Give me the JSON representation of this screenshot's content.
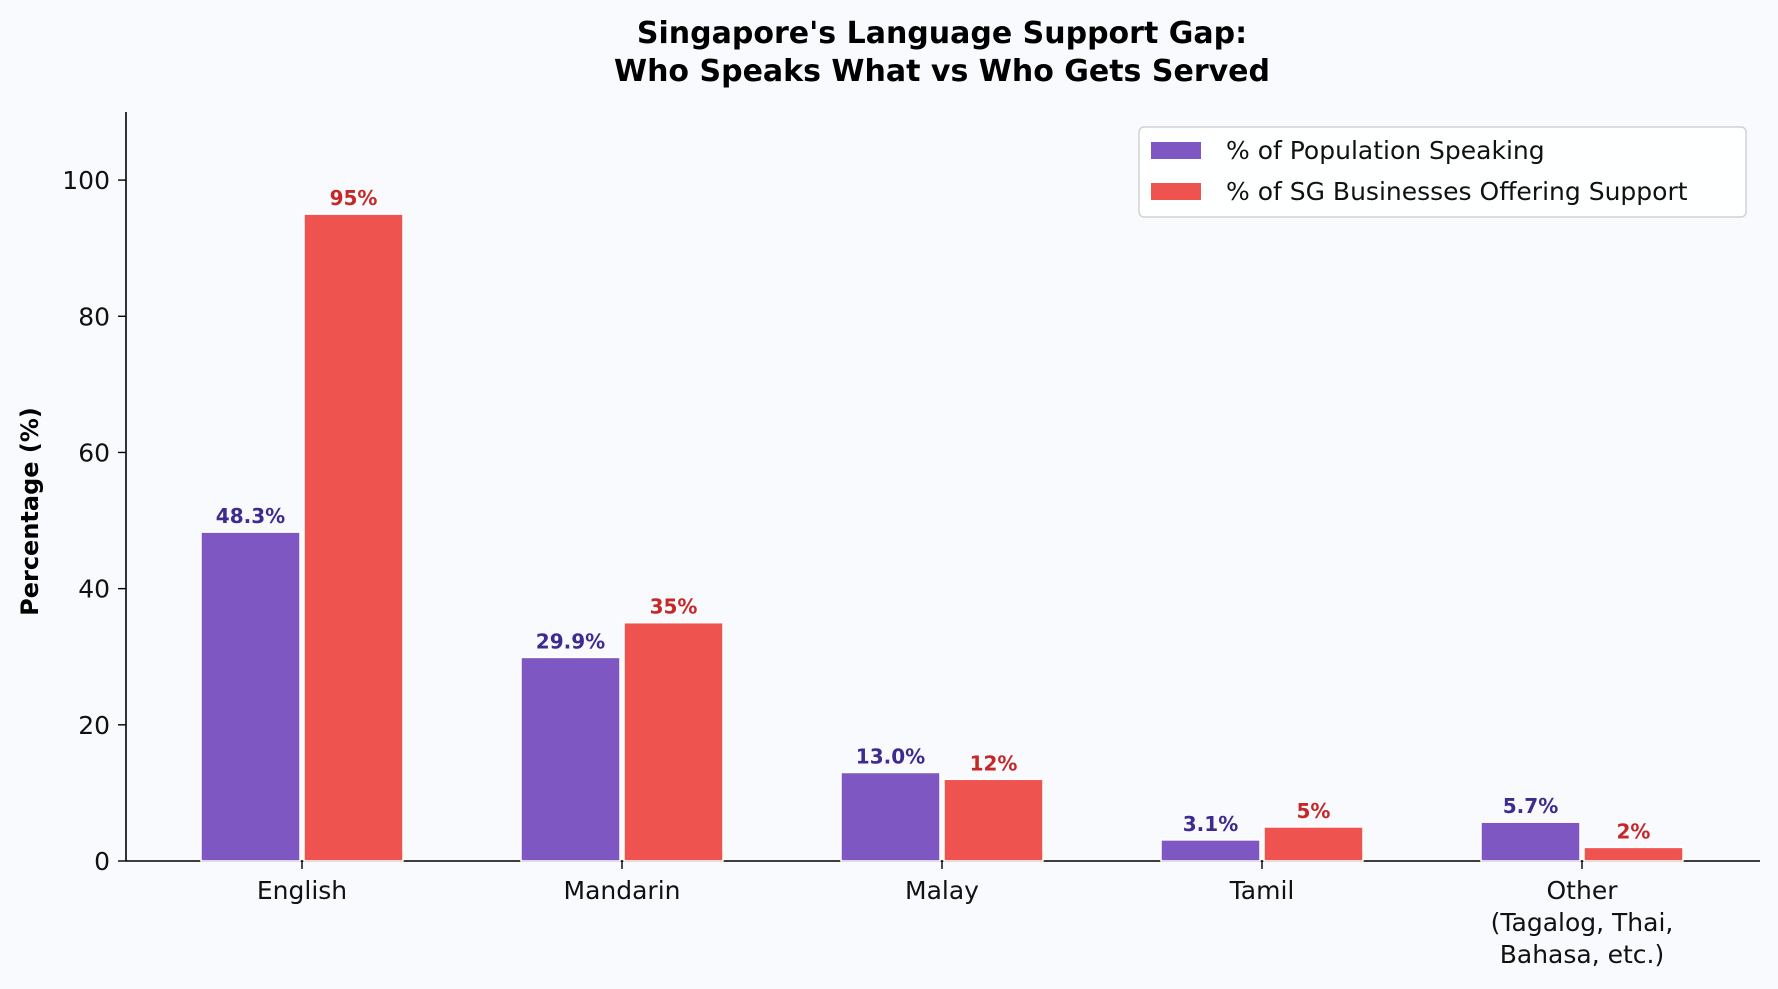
{
  "chart_data": {
    "type": "bar",
    "title": [
      "Singapore's Language Support Gap:",
      "Who Speaks What vs Who Gets Served"
    ],
    "xlabel": "",
    "ylabel": "Percentage (%)",
    "ylim": [
      0,
      110
    ],
    "yticks": [
      0,
      20,
      40,
      60,
      80,
      100
    ],
    "grid": false,
    "legend_position": "top-right",
    "categories": [
      [
        "English"
      ],
      [
        "Mandarin"
      ],
      [
        "Malay"
      ],
      [
        "Tamil"
      ],
      [
        "Other",
        "(Tagalog, Thai,",
        "Bahasa, etc.)"
      ]
    ],
    "series": [
      {
        "name": "% of Population Speaking",
        "color": "#7e57c2",
        "label_color": "#3f2a8e",
        "values": [
          48.3,
          29.9,
          13.0,
          3.1,
          5.7
        ],
        "labels": [
          "48.3%",
          "29.9%",
          "13.0%",
          "3.1%",
          "5.7%"
        ]
      },
      {
        "name": "% of SG Businesses Offering Support",
        "color": "#ef5350",
        "label_color": "#c62828",
        "values": [
          95,
          35,
          12,
          5,
          2
        ],
        "labels": [
          "95%",
          "35%",
          "12%",
          "5%",
          "2%"
        ]
      }
    ]
  }
}
